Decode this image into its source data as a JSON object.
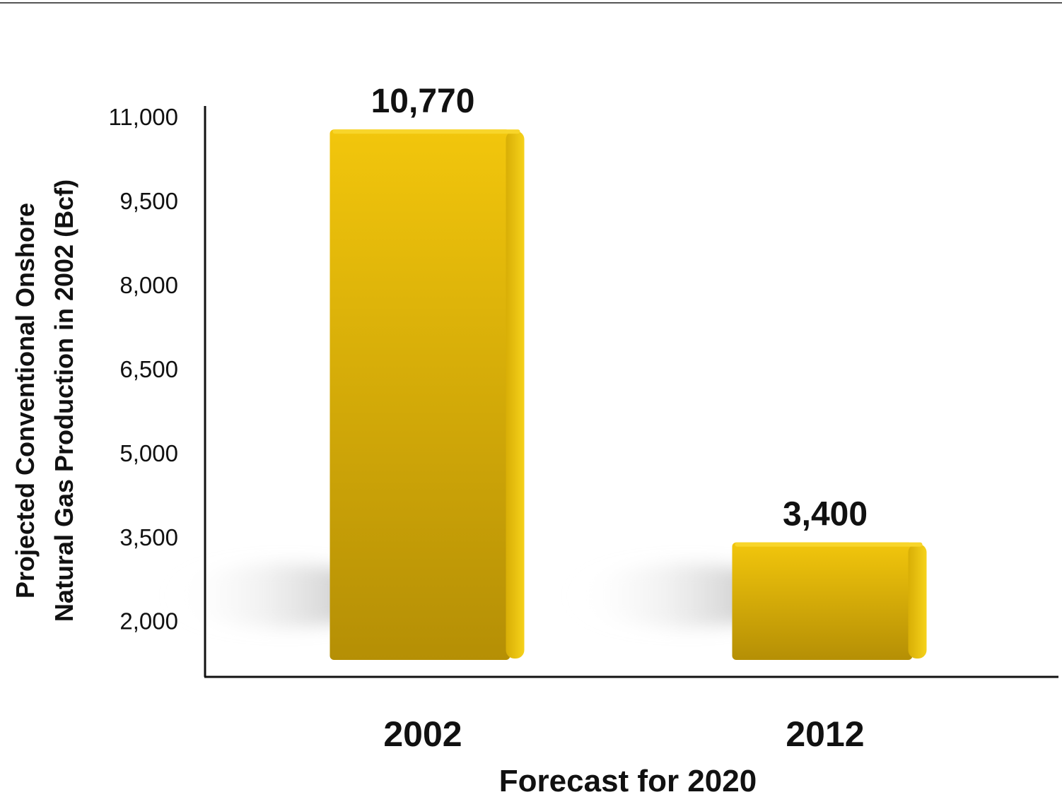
{
  "chart_data": {
    "type": "bar",
    "categories": [
      "2002",
      "2012"
    ],
    "values": [
      10770,
      3400
    ],
    "value_labels": [
      "10,770",
      "3,400"
    ],
    "xlabel": "Forecast for 2020",
    "ylabel_lines": [
      "Projected Conventional Onshore",
      "Natural Gas Production in 2002 (Bcf)"
    ],
    "yticks": [
      2000,
      3500,
      5000,
      6500,
      8000,
      9500,
      11000
    ],
    "ytick_labels": [
      "2,000",
      "3,500",
      "5,000",
      "6,500",
      "8,000",
      "9,500",
      "11,000"
    ],
    "ylim": [
      1000,
      11000
    ],
    "grid": false,
    "colors": {
      "bar_light": "#f2c60c",
      "bar_dark": "#b58f05",
      "axis": "#111111",
      "top_rule": "#555555"
    }
  }
}
